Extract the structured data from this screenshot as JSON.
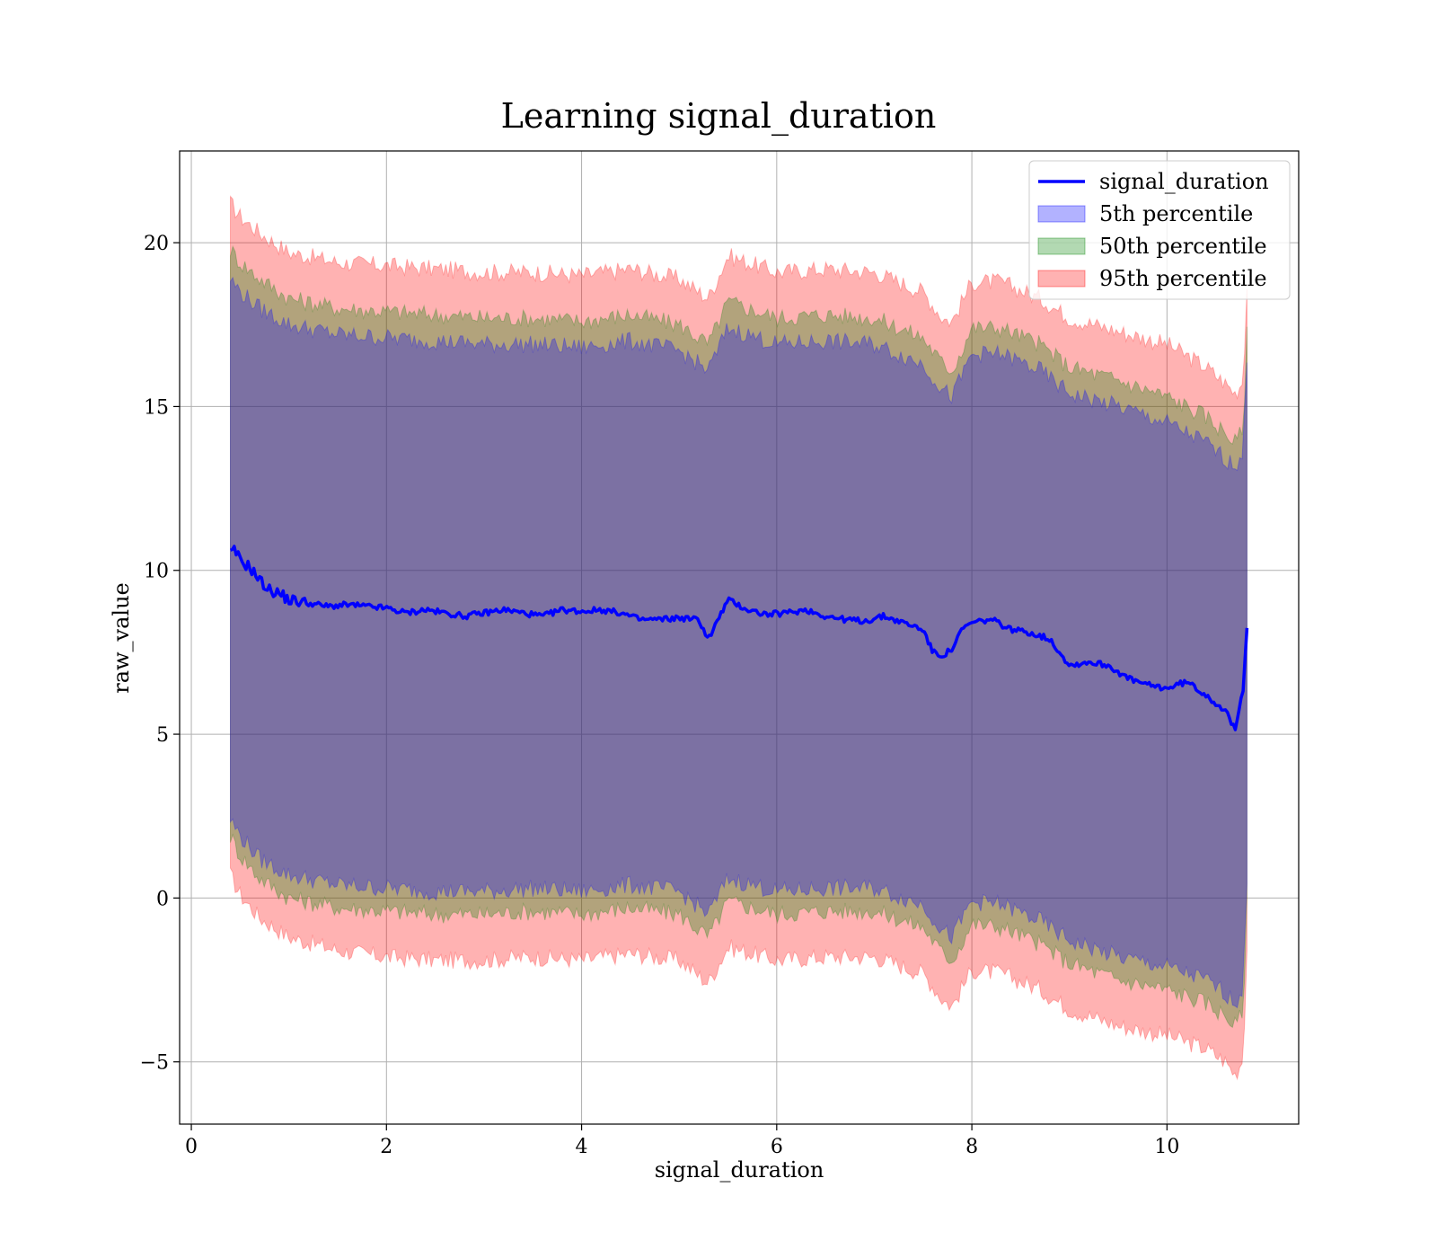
{
  "chart_data": {
    "type": "area",
    "title": "Learning signal_duration",
    "xlabel": "signal_duration",
    "ylabel": "raw_value",
    "xlim": [
      -0.12,
      11.35
    ],
    "ylim": [
      -6.9,
      22.8
    ],
    "xticks": [
      0,
      2,
      4,
      6,
      8,
      10
    ],
    "yticks": [
      -5,
      0,
      5,
      10,
      15,
      20
    ],
    "xtick_labels": [
      "0",
      "2",
      "4",
      "6",
      "8",
      "10"
    ],
    "ytick_labels": [
      "−5",
      "0",
      "5",
      "10",
      "15",
      "20"
    ],
    "grid": true,
    "legend_position": "top-right",
    "line_series": {
      "name": "signal_duration",
      "color": "#0000ff",
      "x": [
        0.4,
        0.45,
        0.5,
        0.6,
        0.7,
        0.8,
        0.9,
        1.0,
        1.2,
        1.4,
        1.6,
        1.8,
        2.0,
        2.2,
        2.4,
        2.6,
        2.8,
        3.0,
        3.2,
        3.4,
        3.6,
        3.8,
        4.0,
        4.2,
        4.4,
        4.6,
        4.8,
        5.0,
        5.2,
        5.3,
        5.5,
        5.7,
        5.9,
        6.1,
        6.3,
        6.5,
        6.7,
        6.9,
        7.1,
        7.3,
        7.5,
        7.6,
        7.7,
        7.8,
        7.9,
        8.0,
        8.2,
        8.4,
        8.6,
        8.8,
        9.0,
        9.2,
        9.4,
        9.6,
        9.8,
        10.0,
        10.2,
        10.4,
        10.6,
        10.7,
        10.78,
        10.82
      ],
      "y": [
        10.5,
        10.6,
        10.3,
        10.1,
        9.7,
        9.4,
        9.3,
        9.1,
        9.0,
        8.9,
        8.95,
        8.9,
        8.85,
        8.7,
        8.8,
        8.7,
        8.6,
        8.7,
        8.8,
        8.7,
        8.6,
        8.8,
        8.75,
        8.8,
        8.7,
        8.5,
        8.5,
        8.55,
        8.5,
        7.9,
        9.1,
        8.8,
        8.65,
        8.7,
        8.8,
        8.6,
        8.5,
        8.45,
        8.6,
        8.4,
        8.2,
        7.5,
        7.4,
        7.6,
        8.2,
        8.4,
        8.5,
        8.2,
        8.1,
        7.9,
        7.1,
        7.2,
        7.1,
        6.7,
        6.5,
        6.4,
        6.6,
        6.2,
        5.7,
        5.1,
        6.4,
        8.3
      ]
    },
    "bands": [
      {
        "name": "95th percentile",
        "color": "#ff0000",
        "opacity": 0.3,
        "x": [
          0.4,
          0.5,
          0.7,
          1.0,
          1.5,
          2.0,
          2.5,
          3.0,
          3.5,
          4.0,
          4.5,
          5.0,
          5.3,
          5.5,
          6.0,
          6.5,
          7.0,
          7.5,
          7.7,
          7.8,
          8.0,
          8.3,
          8.7,
          9.0,
          9.5,
          10.0,
          10.4,
          10.6,
          10.7,
          10.78,
          10.82
        ],
        "upper": [
          21.2,
          20.8,
          20.3,
          19.7,
          19.4,
          19.3,
          19.2,
          19.1,
          19.1,
          19.0,
          19.2,
          18.9,
          18.3,
          19.6,
          19.1,
          19.2,
          19.1,
          18.5,
          17.7,
          17.6,
          18.8,
          18.8,
          18.3,
          17.7,
          17.3,
          16.9,
          16.2,
          15.7,
          15.4,
          15.8,
          18.6
        ],
        "lower": [
          0.7,
          0.1,
          -0.6,
          -1.2,
          -1.6,
          -1.8,
          -1.9,
          -1.9,
          -1.8,
          -1.9,
          -1.7,
          -1.9,
          -2.6,
          -1.5,
          -1.9,
          -1.8,
          -1.8,
          -2.3,
          -3.1,
          -3.3,
          -2.2,
          -2.3,
          -2.8,
          -3.4,
          -3.9,
          -4.2,
          -4.6,
          -5.0,
          -5.4,
          -4.9,
          -1.6
        ]
      },
      {
        "name": "50th percentile",
        "color": "#008000",
        "opacity": 0.3,
        "x": [
          0.4,
          0.5,
          0.7,
          1.0,
          1.5,
          2.0,
          2.5,
          3.0,
          3.5,
          4.0,
          4.5,
          5.0,
          5.3,
          5.5,
          6.0,
          6.5,
          7.0,
          7.5,
          7.7,
          7.8,
          8.0,
          8.3,
          8.7,
          9.0,
          9.5,
          10.0,
          10.4,
          10.6,
          10.7,
          10.78,
          10.82
        ],
        "upper": [
          19.8,
          19.4,
          18.9,
          18.3,
          18.0,
          17.9,
          17.8,
          17.7,
          17.7,
          17.6,
          17.8,
          17.5,
          16.9,
          18.2,
          17.7,
          17.8,
          17.7,
          17.1,
          16.3,
          16.1,
          17.4,
          17.4,
          16.9,
          16.2,
          15.8,
          15.3,
          14.7,
          14.2,
          13.9,
          14.3,
          17.2
        ],
        "lower": [
          1.9,
          1.3,
          0.6,
          0.0,
          -0.3,
          -0.4,
          -0.5,
          -0.5,
          -0.4,
          -0.5,
          -0.3,
          -0.5,
          -1.2,
          -0.1,
          -0.5,
          -0.4,
          -0.4,
          -0.9,
          -1.7,
          -1.9,
          -0.8,
          -0.9,
          -1.4,
          -2.0,
          -2.5,
          -2.8,
          -3.2,
          -3.6,
          -3.9,
          -3.5,
          -0.2
        ]
      },
      {
        "name": "5th percentile",
        "color": "#0000ff",
        "opacity": 0.3,
        "x": [
          0.4,
          0.5,
          0.7,
          1.0,
          1.5,
          2.0,
          2.5,
          3.0,
          3.5,
          4.0,
          4.5,
          5.0,
          5.3,
          5.5,
          6.0,
          6.5,
          7.0,
          7.5,
          7.7,
          7.8,
          8.0,
          8.3,
          8.7,
          9.0,
          9.5,
          10.0,
          10.4,
          10.6,
          10.7,
          10.78,
          10.82
        ],
        "upper": [
          18.9,
          18.5,
          18.0,
          17.5,
          17.2,
          17.1,
          17.0,
          16.9,
          16.9,
          16.8,
          17.0,
          16.7,
          16.1,
          17.4,
          16.9,
          17.0,
          16.9,
          16.3,
          15.5,
          15.3,
          16.6,
          16.6,
          16.1,
          15.4,
          15.0,
          14.5,
          13.9,
          13.4,
          13.2,
          13.6,
          16.4
        ],
        "lower": [
          2.4,
          1.9,
          1.2,
          0.7,
          0.4,
          0.3,
          0.2,
          0.2,
          0.3,
          0.2,
          0.4,
          0.2,
          -0.5,
          0.6,
          0.2,
          0.3,
          0.3,
          -0.2,
          -1.0,
          -1.2,
          -0.1,
          -0.2,
          -0.7,
          -1.3,
          -1.8,
          -2.1,
          -2.5,
          -2.9,
          -3.2,
          -2.8,
          0.5
        ]
      }
    ],
    "legend": [
      {
        "label": "signal_duration",
        "kind": "line",
        "color": "#0000ff"
      },
      {
        "label": "5th percentile",
        "kind": "patch",
        "color": "#0000ff"
      },
      {
        "label": "50th percentile",
        "kind": "patch",
        "color": "#008000"
      },
      {
        "label": "95th percentile",
        "kind": "patch",
        "color": "#ff0000"
      }
    ]
  }
}
